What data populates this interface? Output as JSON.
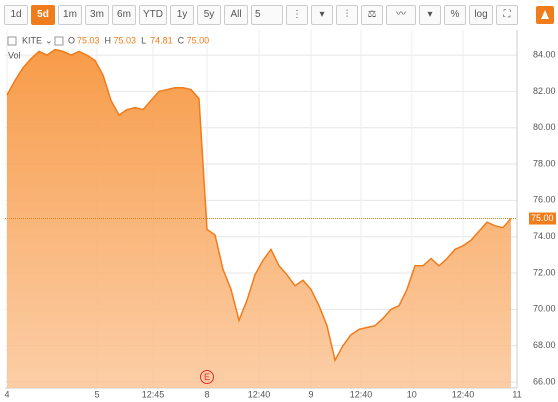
{
  "toolbar": {
    "ranges": [
      "1d",
      "5d",
      "1m",
      "3m",
      "6m",
      "YTD",
      "1y",
      "5y",
      "All"
    ],
    "active": "5d",
    "interval": "5"
  },
  "chart_data": {
    "type": "area",
    "symbol": "KITE",
    "quote": [
      {
        "key": "O",
        "value": "75.03"
      },
      {
        "key": "H",
        "value": "75.03"
      },
      {
        "key": "L",
        "value": "74.81"
      },
      {
        "key": "C",
        "value": "75.00"
      }
    ],
    "volume_label": "Vol",
    "annotation": "E",
    "x": [
      0,
      1,
      2,
      3,
      4,
      5,
      6,
      7,
      8,
      9,
      10,
      11,
      12,
      13,
      14,
      15,
      16,
      17,
      18,
      19,
      20,
      21,
      22,
      23,
      24,
      25,
      26,
      27,
      28,
      29,
      30,
      31,
      32,
      33,
      34,
      35,
      36,
      37,
      38,
      39,
      40,
      41,
      42,
      43,
      44,
      45,
      46,
      47,
      48,
      49,
      50,
      51,
      52,
      53,
      54,
      55,
      56,
      57,
      58,
      59,
      60,
      61,
      62,
      63
    ],
    "series": [
      {
        "name": "KITE",
        "color": "#f07c1b",
        "fill": "#f9a866",
        "values": [
          81.8,
          82.6,
          83.3,
          83.8,
          84.2,
          84.0,
          84.3,
          84.2,
          84.0,
          84.2,
          84.0,
          83.7,
          82.9,
          81.5,
          80.7,
          81.0,
          81.1,
          81.0,
          81.5,
          82.0,
          82.1,
          82.2,
          82.2,
          82.1,
          81.6,
          74.4,
          74.1,
          72.2,
          71.1,
          69.4,
          70.5,
          71.9,
          72.7,
          73.3,
          72.4,
          71.9,
          71.3,
          71.6,
          71.1,
          70.2,
          69.1,
          67.2,
          68.0,
          68.6,
          68.9,
          69.0,
          69.1,
          69.5,
          70.0,
          70.2,
          71.1,
          72.4,
          72.4,
          72.8,
          72.4,
          72.8,
          73.3,
          73.5,
          73.8,
          74.3,
          74.8,
          74.6,
          74.5,
          75.0
        ]
      }
    ],
    "xlim": [
      -0.25,
      63.75
    ],
    "xticks": [
      {
        "value": 0,
        "label": "4"
      },
      {
        "value": 11.25,
        "label": "5"
      },
      {
        "value": 18.25,
        "label": "12:45"
      },
      {
        "value": 25,
        "label": "8"
      },
      {
        "value": 31.5,
        "label": "12:40"
      },
      {
        "value": 38,
        "label": "9"
      },
      {
        "value": 44.25,
        "label": "12:40"
      },
      {
        "value": 50.6,
        "label": "10"
      },
      {
        "value": 57,
        "label": "12:40"
      },
      {
        "value": 63.75,
        "label": "11"
      }
    ],
    "ylim": [
      65.67,
      85.38
    ],
    "yticks": [
      {
        "value": 66,
        "label": "66.00"
      },
      {
        "value": 68,
        "label": "68.00"
      },
      {
        "value": 70,
        "label": "70.00"
      },
      {
        "value": 72,
        "label": "72.00"
      },
      {
        "value": 74,
        "label": "74.00"
      },
      {
        "value": 76,
        "label": "76.00"
      },
      {
        "value": 78,
        "label": "78.00"
      },
      {
        "value": 80,
        "label": "80.00"
      },
      {
        "value": 82,
        "label": "82.00"
      },
      {
        "value": 84,
        "label": "84.00"
      }
    ],
    "last_price": {
      "value": 75,
      "label": "75.00"
    },
    "annotation_x": 25,
    "grid": true
  }
}
